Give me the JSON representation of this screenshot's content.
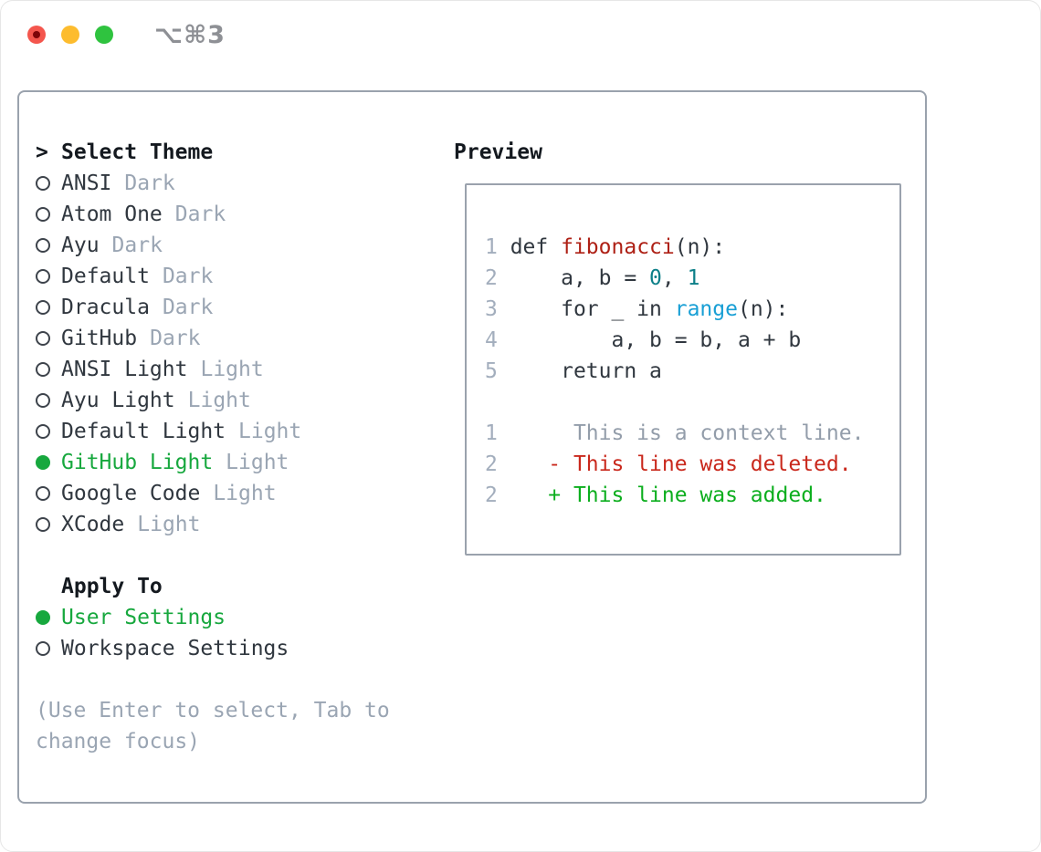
{
  "titlebar": {
    "shortcut": "⌥⌘3"
  },
  "theme_panel": {
    "header_prefix": ">",
    "header_label": "Select Theme",
    "items": [
      {
        "label": "ANSI",
        "variant": "Dark",
        "selected": false
      },
      {
        "label": "Atom One",
        "variant": "Dark",
        "selected": false
      },
      {
        "label": "Ayu",
        "variant": "Dark",
        "selected": false
      },
      {
        "label": "Default",
        "variant": "Dark",
        "selected": false
      },
      {
        "label": "Dracula",
        "variant": "Dark",
        "selected": false
      },
      {
        "label": "GitHub",
        "variant": "Dark",
        "selected": false
      },
      {
        "label": "ANSI Light",
        "variant": "Light",
        "selected": false
      },
      {
        "label": "Ayu Light",
        "variant": "Light",
        "selected": false
      },
      {
        "label": "Default Light",
        "variant": "Light",
        "selected": false
      },
      {
        "label": "GitHub Light",
        "variant": "Light",
        "selected": true
      },
      {
        "label": "Google Code",
        "variant": "Light",
        "selected": false
      },
      {
        "label": "XCode",
        "variant": "Light",
        "selected": false
      }
    ],
    "apply_header": "Apply To",
    "apply_options": [
      {
        "label": "User Settings",
        "selected": true
      },
      {
        "label": "Workspace Settings",
        "selected": false
      }
    ],
    "hint_lines": [
      "(Use Enter to select, Tab to",
      "change focus)"
    ]
  },
  "preview": {
    "label": "Preview",
    "lines": [
      {
        "num": "1",
        "tokens": [
          [
            "code",
            " def "
          ],
          [
            "func",
            "fibonacci"
          ],
          [
            "code",
            "(n):"
          ]
        ]
      },
      {
        "num": "2",
        "tokens": [
          [
            "code",
            "     a, b = "
          ],
          [
            "num",
            "0"
          ],
          [
            "code",
            ", "
          ],
          [
            "num",
            "1"
          ]
        ]
      },
      {
        "num": "3",
        "tokens": [
          [
            "code",
            "     for _ in "
          ],
          [
            "builtin",
            "range"
          ],
          [
            "code",
            "(n):"
          ]
        ]
      },
      {
        "num": "4",
        "tokens": [
          [
            "code",
            "         a, b = b, a + b"
          ]
        ]
      },
      {
        "num": "5",
        "tokens": [
          [
            "code",
            "     return a"
          ]
        ]
      },
      {
        "num": "",
        "tokens": []
      },
      {
        "num": "1",
        "tokens": [
          [
            "ctx",
            "      This is a context line."
          ]
        ]
      },
      {
        "num": "2",
        "tokens": [
          [
            "del",
            "    - This line was deleted."
          ]
        ]
      },
      {
        "num": "2",
        "tokens": [
          [
            "add",
            "    + This line was added."
          ]
        ]
      }
    ]
  },
  "colors": {
    "accent_green": "#17a83e",
    "diff_add_green": "#0cae1e",
    "diff_del_red": "#c9281c",
    "function_red": "#ae2015",
    "number_teal": "#0c7f88",
    "builtin_blue": "#189fd5",
    "traffic_red": "#f4564d",
    "traffic_red_dot": "#7e0508",
    "traffic_yellow": "#fdbc2e",
    "traffic_green": "#2fc33f"
  }
}
